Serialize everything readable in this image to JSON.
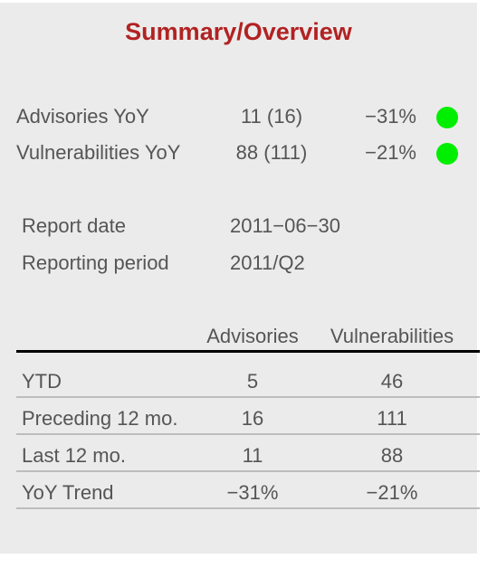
{
  "title": "Summary/Overview",
  "yoy": [
    {
      "label": "Advisories YoY",
      "value": "11 (16)",
      "change": "−31%",
      "status_color": "#00ee00"
    },
    {
      "label": "Vulnerabilities YoY",
      "value": "88 (111)",
      "change": "−21%",
      "status_color": "#00ee00"
    }
  ],
  "meta": [
    {
      "label": "Report date",
      "value": "2011−06−30"
    },
    {
      "label": "Reporting period",
      "value": "2011/Q2"
    }
  ],
  "table": {
    "headers": [
      "Advisories",
      "Vulnerabilities"
    ],
    "rows": [
      {
        "label": "YTD",
        "advisories": "5",
        "vulnerabilities": "46"
      },
      {
        "label": "Preceding 12 mo.",
        "advisories": "16",
        "vulnerabilities": "111"
      },
      {
        "label": "Last 12 mo.",
        "advisories": "11",
        "vulnerabilities": "88"
      },
      {
        "label": "YoY Trend",
        "advisories": "−31%",
        "vulnerabilities": "−21%"
      }
    ]
  }
}
